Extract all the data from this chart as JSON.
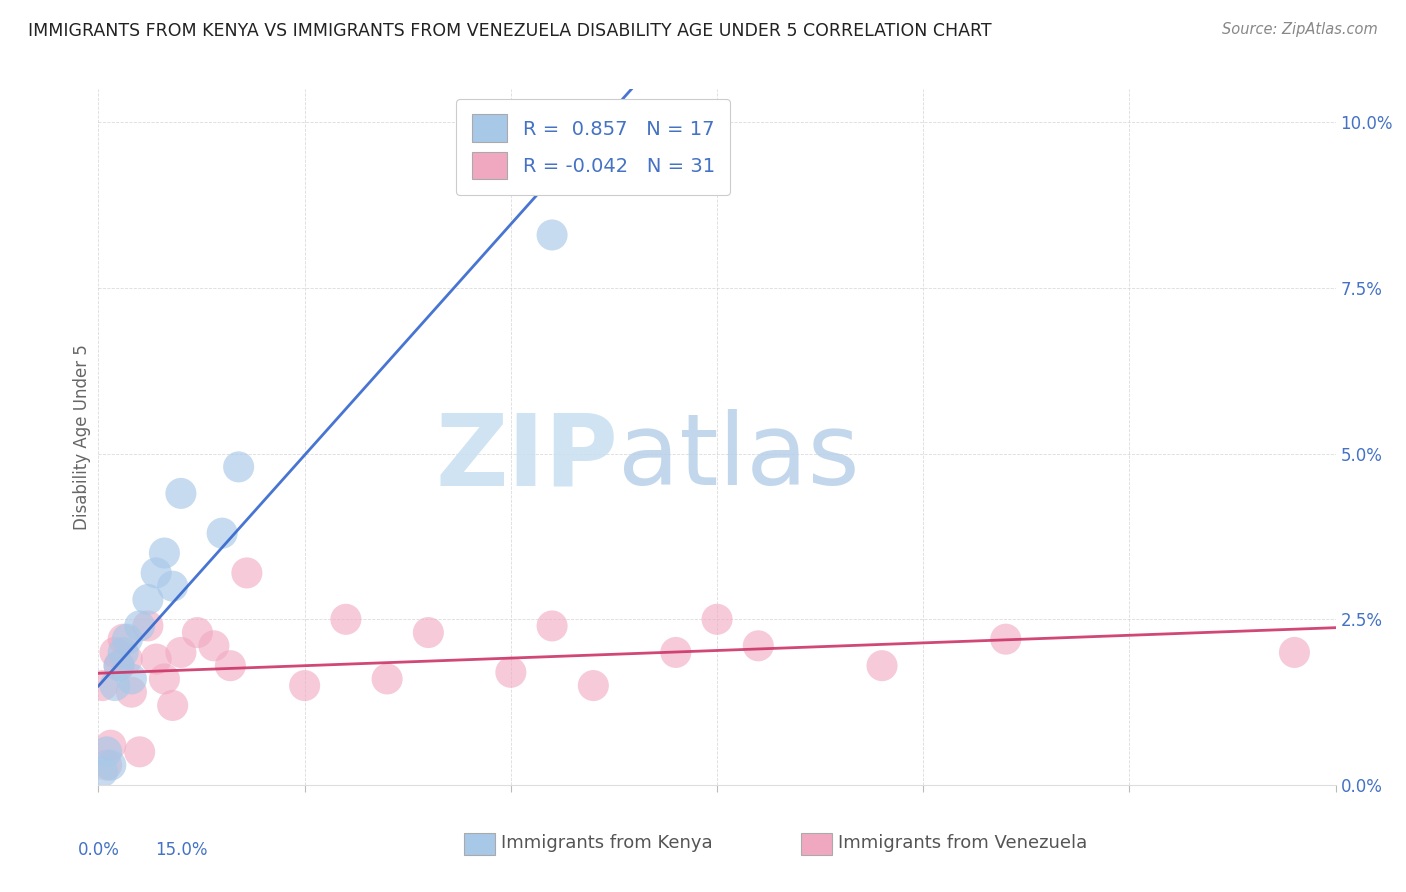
{
  "title": "IMMIGRANTS FROM KENYA VS IMMIGRANTS FROM VENEZUELA DISABILITY AGE UNDER 5 CORRELATION CHART",
  "source": "Source: ZipAtlas.com",
  "ylabel": "Disability Age Under 5",
  "xlim": [
    0.0,
    15.0
  ],
  "ylim": [
    0.0,
    10.5
  ],
  "kenya_color": "#a8c8e8",
  "kenya_line_color": "#3366cc",
  "venezuela_color": "#f0a8c0",
  "venezuela_line_color": "#cc3366",
  "kenya_R": 0.857,
  "kenya_N": 17,
  "venezuela_R": -0.042,
  "venezuela_N": 31,
  "legend_label_kenya": "Immigrants from Kenya",
  "legend_label_venezuela": "Immigrants from Venezuela",
  "kenya_x": [
    0.05,
    0.1,
    0.15,
    0.2,
    0.25,
    0.3,
    0.35,
    0.4,
    0.5,
    0.6,
    0.7,
    0.8,
    0.9,
    1.0,
    1.5,
    1.7,
    5.5
  ],
  "kenya_y": [
    0.2,
    0.5,
    0.3,
    1.5,
    1.8,
    2.0,
    2.2,
    1.6,
    2.4,
    2.8,
    3.2,
    3.5,
    3.0,
    4.4,
    3.8,
    4.8,
    8.3
  ],
  "venezuela_x": [
    0.05,
    0.1,
    0.15,
    0.2,
    0.25,
    0.3,
    0.35,
    0.4,
    0.5,
    0.6,
    0.7,
    0.8,
    0.9,
    1.0,
    1.2,
    1.4,
    1.6,
    1.8,
    2.5,
    3.0,
    3.5,
    4.0,
    5.0,
    5.5,
    6.0,
    7.0,
    7.5,
    8.0,
    9.5,
    11.0,
    14.5
  ],
  "venezuela_y": [
    1.5,
    0.3,
    0.6,
    2.0,
    1.8,
    2.2,
    1.9,
    1.4,
    0.5,
    2.4,
    1.9,
    1.6,
    1.2,
    2.0,
    2.3,
    2.1,
    1.8,
    3.2,
    1.5,
    2.5,
    1.6,
    2.3,
    1.7,
    2.4,
    1.5,
    2.0,
    2.5,
    2.1,
    1.8,
    2.2,
    2.0
  ],
  "y_ticks": [
    0.0,
    2.5,
    5.0,
    7.5,
    10.0
  ],
  "x_ticks": [
    0.0,
    2.5,
    5.0,
    7.5,
    10.0,
    12.5,
    15.0
  ],
  "tick_color": "#4472c4",
  "grid_color": "#cccccc",
  "title_color": "#222222",
  "axis_label_color": "#666666",
  "watermark_zip_color": "#c8dff0",
  "watermark_atlas_color": "#b8cfe8",
  "title_fontsize": 12.5,
  "tick_fontsize": 12,
  "ylabel_fontsize": 12
}
